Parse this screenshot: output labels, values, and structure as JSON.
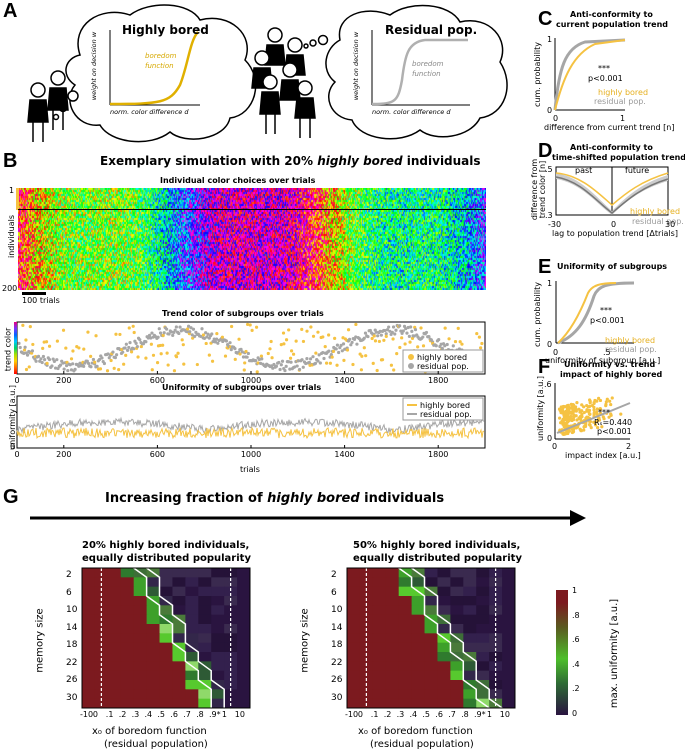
{
  "panelA": {
    "letter": "A",
    "bubble_left": {
      "title": "Highly bored",
      "curve_label_1": "boredom",
      "curve_label_2": "function",
      "ylabel": "weight on decision w",
      "xlabel": "norm. color difference d"
    },
    "bubble_right": {
      "title": "Residual pop.",
      "curve_label_1": "boredom",
      "curve_label_2": "function",
      "ylabel": "weight on decision w",
      "xlabel": "norm. color difference d"
    }
  },
  "panelB": {
    "letter": "B",
    "title_pre": "Exemplary simulation with 20% ",
    "title_it": "highly bored",
    "title_post": " individuals",
    "sub1": {
      "title": "Individual color choices over trials",
      "ylabel": "individuals",
      "ytick_top": "1",
      "ytick_bottom": "200",
      "scale_label": "100 trials"
    },
    "sub2": {
      "title": "Trend color of subgroups over trials",
      "ylabel": "trend color",
      "xticks": [
        "0",
        "200",
        "600",
        "1000",
        "1400",
        "1800"
      ],
      "legend": [
        "highly bored",
        "residual pop."
      ]
    },
    "sub3": {
      "title": "Uniformity of subgroups over trials",
      "ylabel": "uniformity [a.u.]",
      "ytick": "0",
      "xlabel": "trials",
      "xticks": [
        "0",
        "200",
        "600",
        "1000",
        "1400",
        "1800"
      ],
      "legend": [
        "highly bored",
        "residual pop."
      ]
    }
  },
  "panelC": {
    "letter": "C",
    "title1": "Anti-conformity to",
    "title2": "current population trend",
    "ylabel": "cum. probability",
    "xlabel": "difference from current trend [n]",
    "yticks": [
      "1",
      "0"
    ],
    "xticks": [
      "0",
      "1"
    ],
    "stars": "***",
    "p": "p<0.001",
    "legend": [
      "highly bored",
      "residual pop."
    ]
  },
  "panelD": {
    "letter": "D",
    "title1": "Anti-conformity to",
    "title2": "time-shifted population trend",
    "ylabel1": "difference from",
    "ylabel2": "trend color [n]",
    "xlabel": "lag to population trend [Δtrials]",
    "yticks": [
      ".5",
      ".3"
    ],
    "xticks": [
      "-30",
      "0",
      "30"
    ],
    "past": "past",
    "future": "future",
    "legend": [
      "highly bored",
      "residual pop."
    ]
  },
  "panelE": {
    "letter": "E",
    "title": "Uniformity of subgroups",
    "ylabel": "cum. probability",
    "xlabel": "uniformity of subgroup [a.u.]",
    "yticks": [
      "1",
      "0"
    ],
    "xticks": [
      "0",
      ".5"
    ],
    "stars": "***",
    "p": "p<0.001",
    "legend": [
      "highly bored",
      "residual pop."
    ]
  },
  "panelF": {
    "letter": "F",
    "title1": "Uniformity vs. trend",
    "title2": "impact of highly bored",
    "ylabel": "uniformity [a.u.]",
    "xlabel": "impact index [a.u.]",
    "yticks": [
      ".6",
      "0"
    ],
    "xticks": [
      "0",
      "2"
    ],
    "stars": "***",
    "rs": "Rₛ=0.440",
    "p": "p<0.001"
  },
  "panelG": {
    "letter": "G",
    "title_pre": "Increasing fraction of ",
    "title_it": "highly bored",
    "title_post": " individuals",
    "left": {
      "title1": "20% highly bored individuals,",
      "title2": "equally distributed popularity"
    },
    "right": {
      "title1": "50% highly bored individuals,",
      "title2": "equally distributed popularity"
    },
    "ylabel": "memory size",
    "yticks": [
      "2",
      "6",
      "10",
      "14",
      "18",
      "22",
      "26",
      "30"
    ],
    "xticks": [
      "-10",
      "0",
      ".1",
      ".2",
      ".3",
      ".4",
      ".5",
      ".6",
      ".7",
      ".8",
      ".9*",
      "1",
      "10"
    ],
    "xlabel1": "x₀ of boredom function",
    "xlabel2": "(residual population)",
    "colorbar_label": "max. uniformity [a.u.]",
    "colorbar_ticks": [
      "1",
      ".8",
      ".6",
      ".4",
      ".2",
      "0"
    ]
  },
  "colors": {
    "highly_bored": "#f5c242",
    "residual": "#a6a6a6",
    "heat_high": "#7c1a1f",
    "heat_low": "#2a1440",
    "heat_mid": "#4dbf2a"
  }
}
